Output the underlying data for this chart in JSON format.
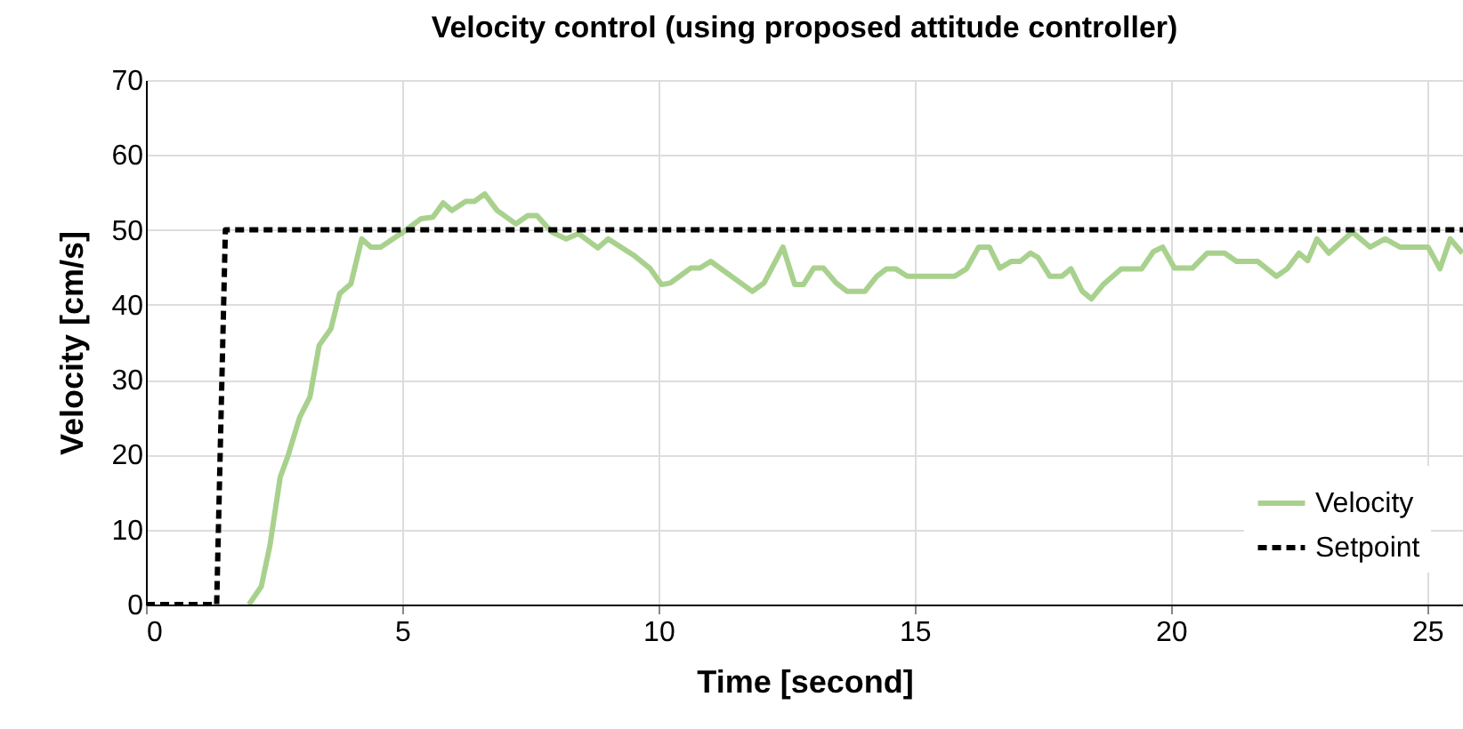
{
  "chart_data": {
    "type": "line",
    "title": "Velocity control (using proposed attitude controller)",
    "xlabel": "Time [second]",
    "ylabel": "Velocity [cm/s]",
    "xlim": [
      0,
      25.7
    ],
    "xticks": [
      0,
      5,
      10,
      15,
      20,
      25
    ],
    "ylim": [
      0,
      70
    ],
    "yticks": [
      0,
      10,
      20,
      30,
      40,
      50,
      60,
      70
    ],
    "grid": true,
    "legend": "bottom right",
    "marker": "none",
    "series": [
      {
        "name": "Velocity",
        "color": "#a9d18e",
        "line_style": "solid",
        "x": [
          2.01,
          2.25,
          2.42,
          2.62,
          2.77,
          3.0,
          3.2,
          3.38,
          3.61,
          3.78,
          4.0,
          4.21,
          4.39,
          4.58,
          5.02,
          5.37,
          5.6,
          5.8,
          5.97,
          6.24,
          6.41,
          6.61,
          6.85,
          7.22,
          7.45,
          7.63,
          7.92,
          8.2,
          8.44,
          8.82,
          9.02,
          9.54,
          9.83,
          10.06,
          10.23,
          10.63,
          10.81,
          11.02,
          11.83,
          12.06,
          12.43,
          12.66,
          12.83,
          13.03,
          13.22,
          13.47,
          13.68,
          14.03,
          14.26,
          14.45,
          14.63,
          14.86,
          15.78,
          16.01,
          16.25,
          16.46,
          16.66,
          16.89,
          17.06,
          17.26,
          17.41,
          17.64,
          17.87,
          18.05,
          18.27,
          18.45,
          18.68,
          19.03,
          19.43,
          19.66,
          19.84,
          20.07,
          20.42,
          20.71,
          21.05,
          21.28,
          21.69,
          22.06,
          22.27,
          22.5,
          22.67,
          22.85,
          23.08,
          23.54,
          23.89,
          24.18,
          24.47,
          25.02,
          25.25,
          25.45,
          25.69
        ],
        "values": [
          0,
          2.4,
          7.9,
          17,
          19.8,
          25,
          27.7,
          34.6,
          36.8,
          41.5,
          42.8,
          48.8,
          47.7,
          47.7,
          49.7,
          51.5,
          51.7,
          53.6,
          52.6,
          53.8,
          53.8,
          54.8,
          52.6,
          50.8,
          51.9,
          51.9,
          49.7,
          48.8,
          49.5,
          47.6,
          48.8,
          46.5,
          44.9,
          42.7,
          42.9,
          44.9,
          44.9,
          45.8,
          41.8,
          42.9,
          47.7,
          42.7,
          42.7,
          44.9,
          44.9,
          42.9,
          41.8,
          41.8,
          43.8,
          44.8,
          44.8,
          43.8,
          43.8,
          44.8,
          47.7,
          47.7,
          44.9,
          45.8,
          45.8,
          46.9,
          46.3,
          43.8,
          43.8,
          44.8,
          41.8,
          40.8,
          42.7,
          44.8,
          44.8,
          47.1,
          47.7,
          44.9,
          44.9,
          46.9,
          46.9,
          45.8,
          45.8,
          43.8,
          44.8,
          46.9,
          45.9,
          48.8,
          46.9,
          49.7,
          47.7,
          48.8,
          47.7,
          47.7,
          44.8,
          48.8,
          46.9
        ]
      },
      {
        "name": "Setpoint",
        "color": "#000000",
        "line_style": "dashed",
        "x": [
          0,
          1.38,
          1.55,
          25.7
        ],
        "values": [
          0,
          0,
          50,
          50
        ]
      }
    ]
  }
}
